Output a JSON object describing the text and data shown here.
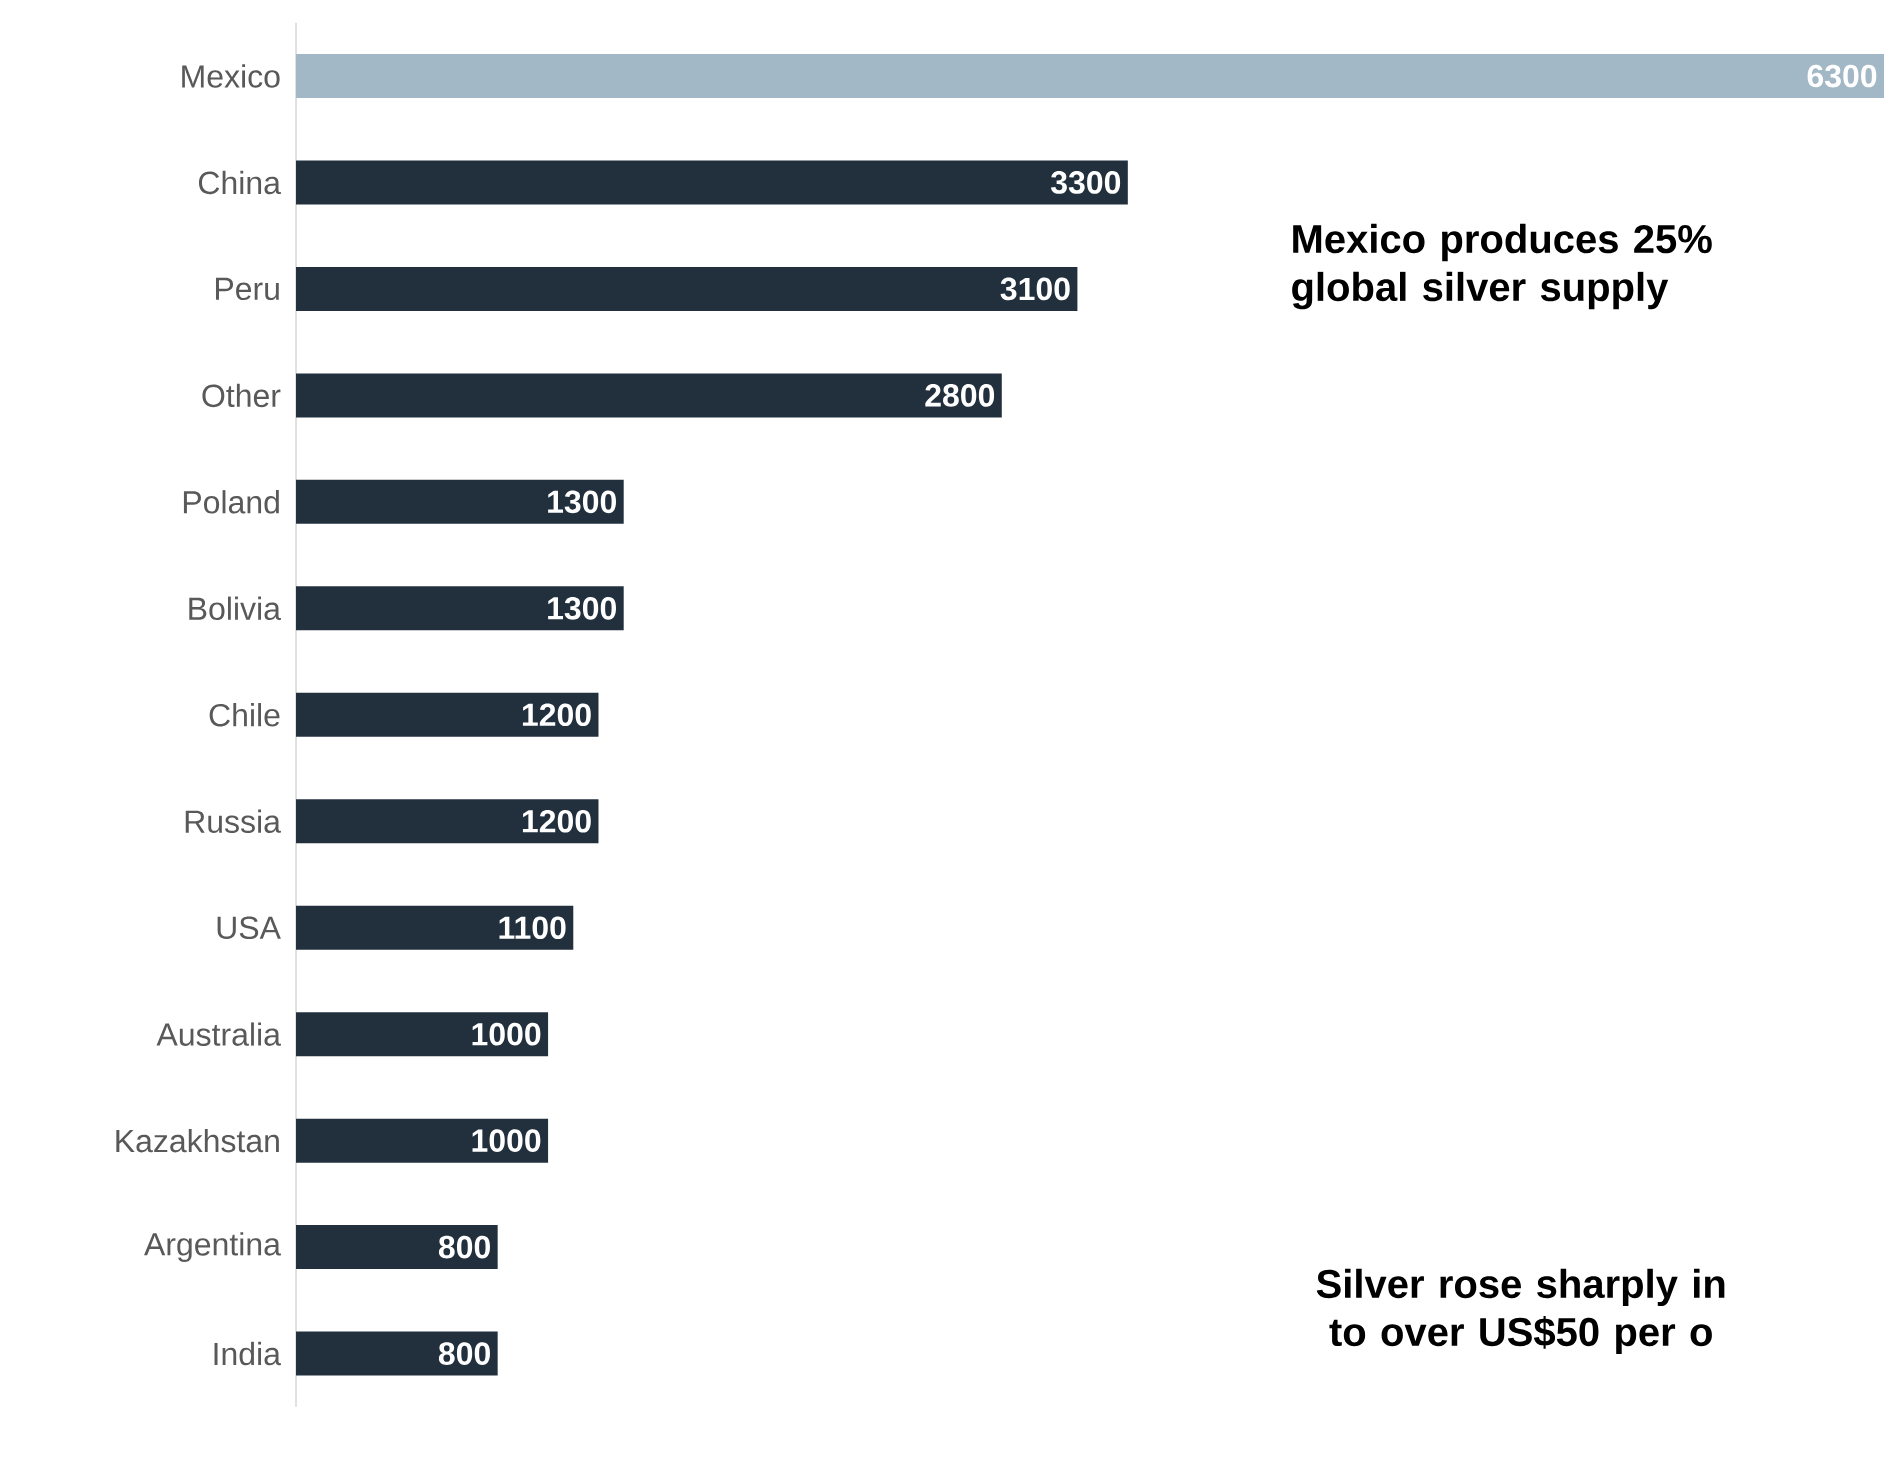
{
  "chart_data": {
    "type": "bar",
    "orientation": "horizontal",
    "data_labels": true,
    "categories": [
      "Mexico",
      "China",
      "Peru",
      "Other",
      "Poland",
      "Bolivia",
      "Chile",
      "Russia",
      "USA",
      "Australia",
      "Kazakhstan",
      "Argentina",
      "India"
    ],
    "values": [
      6300,
      3300,
      3100,
      2800,
      1300,
      1300,
      1200,
      1200,
      1100,
      1000,
      1000,
      800,
      800
    ],
    "colors": [
      "#a3b8c6",
      "#22303e",
      "#22303e",
      "#22303e",
      "#22303e",
      "#22303e",
      "#22303e",
      "#22303e",
      "#22303e",
      "#22303e",
      "#22303e",
      "#22303e",
      "#22303e"
    ],
    "annotations": [
      "Mexico produces 25% global silver supply",
      "Silver rose sharply in to over US$50 per o"
    ]
  }
}
